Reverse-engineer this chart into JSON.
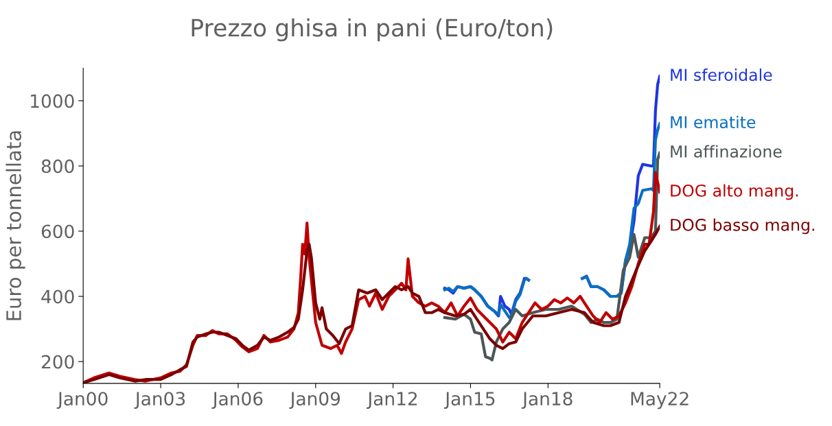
{
  "chart_data": {
    "type": "line",
    "title": "Prezzo ghisa in pani (Euro/ton)",
    "ylabel": "Euro per tonnellata",
    "xlim": [
      "2000-01",
      "2022-05"
    ],
    "xticks": [
      {
        "value": "2000-01",
        "label": "Jan00"
      },
      {
        "value": "2003-01",
        "label": "Jan03"
      },
      {
        "value": "2006-01",
        "label": "Jan06"
      },
      {
        "value": "2009-01",
        "label": "Jan09"
      },
      {
        "value": "2012-01",
        "label": "Jan12"
      },
      {
        "value": "2015-01",
        "label": "Jan15"
      },
      {
        "value": "2018-01",
        "label": "Jan18"
      },
      {
        "value": "2022-05",
        "label": "May22"
      }
    ],
    "ylim": [
      133,
      1100
    ],
    "yticks": [
      200,
      400,
      600,
      800,
      1000
    ],
    "grid": false,
    "legend": false,
    "marker": "none",
    "line_style": "solid",
    "series": [
      {
        "name": "MI sferoidale",
        "color": "#1f35e0",
        "x": [
          "2014-01",
          "2014-03",
          "2014-05",
          "2014-07",
          "2014-10",
          "2015-01",
          "2015-03",
          "2015-06",
          "2015-09",
          "2015-12",
          "2016-02",
          "2016-03",
          "2016-05",
          "2016-07",
          "2016-08",
          "2016-10",
          "2016-12",
          "2017-02",
          "2017-03",
          "2017-04",
          "2018-06",
          "2019-05",
          "2019-07",
          "2019-09",
          "2019-12",
          "2020-03",
          "2020-06",
          "2020-09",
          "2020-11",
          "2021-01",
          "2021-03",
          "2021-05",
          "2021-07",
          "2021-09",
          "2022-01",
          "2022-02",
          "2022-03",
          "2022-04",
          "2022-05"
        ],
        "values": [
          425,
          420,
          410,
          430,
          425,
          430,
          420,
          400,
          370,
          355,
          340,
          400,
          370,
          360,
          345,
          390,
          410,
          455,
          455,
          450,
          null,
          455,
          462,
          430,
          430,
          420,
          400,
          400,
          410,
          510,
          550,
          630,
          770,
          805,
          800,
          800,
          970,
          1050,
          1075
        ]
      },
      {
        "name": "MI ematite",
        "color": "#0a6fc2",
        "x": [
          "2014-01",
          "2014-03",
          "2014-05",
          "2014-07",
          "2014-10",
          "2015-01",
          "2015-03",
          "2015-06",
          "2015-09",
          "2015-12",
          "2016-02",
          "2016-03",
          "2016-05",
          "2016-07",
          "2016-08",
          "2016-10",
          "2016-12",
          "2017-02",
          "2017-03",
          "2017-04",
          "2018-06",
          "2019-05",
          "2019-07",
          "2019-09",
          "2019-12",
          "2020-03",
          "2020-06",
          "2020-09",
          "2020-11",
          "2021-01",
          "2021-03",
          "2021-05",
          "2021-07",
          "2021-09",
          "2022-01",
          "2022-02",
          "2022-03",
          "2022-04",
          "2022-05"
        ],
        "values": [
          420,
          425,
          415,
          430,
          425,
          430,
          420,
          400,
          370,
          355,
          345,
          375,
          355,
          335,
          340,
          385,
          405,
          450,
          455,
          450,
          null,
          455,
          460,
          430,
          430,
          420,
          400,
          400,
          410,
          510,
          560,
          670,
          685,
          725,
          730,
          725,
          880,
          910,
          930
        ]
      },
      {
        "name": "MI affinazione",
        "color": "#4d5656",
        "x": [
          "2014-01",
          "2014-06",
          "2014-10",
          "2015-01",
          "2015-03",
          "2015-06",
          "2015-08",
          "2015-10",
          "2015-11",
          "2016-01",
          "2016-04",
          "2016-07",
          "2016-10",
          "2017-01",
          "2017-06",
          "2017-12",
          "2018-06",
          "2018-12",
          "2019-06",
          "2019-09",
          "2019-12",
          "2020-03",
          "2020-06",
          "2020-09",
          "2020-12",
          "2021-03",
          "2021-05",
          "2021-07",
          "2021-10",
          "2022-01",
          "2022-03",
          "2022-04",
          "2022-05"
        ],
        "values": [
          335,
          330,
          345,
          330,
          290,
          285,
          215,
          210,
          205,
          260,
          300,
          320,
          360,
          340,
          350,
          360,
          360,
          370,
          345,
          320,
          330,
          320,
          320,
          330,
          480,
          520,
          590,
          520,
          580,
          580,
          600,
          820,
          840
        ]
      },
      {
        "name": "DOG alto mang.",
        "color": "#c00000",
        "x": [
          "2000-01",
          "2000-06",
          "2001-01",
          "2001-06",
          "2002-01",
          "2002-06",
          "2003-01",
          "2003-06",
          "2003-10",
          "2004-01",
          "2004-04",
          "2004-06",
          "2004-10",
          "2005-01",
          "2005-04",
          "2005-08",
          "2005-12",
          "2006-03",
          "2006-06",
          "2006-10",
          "2007-01",
          "2007-04",
          "2007-08",
          "2007-12",
          "2008-03",
          "2008-05",
          "2008-06",
          "2008-07",
          "2008-08",
          "2008-09",
          "2008-10",
          "2009-01",
          "2009-04",
          "2009-08",
          "2009-11",
          "2010-01",
          "2010-03",
          "2010-06",
          "2010-09",
          "2010-12",
          "2011-02",
          "2011-05",
          "2011-08",
          "2011-11",
          "2012-02",
          "2012-05",
          "2012-07",
          "2012-08",
          "2012-10",
          "2013-01",
          "2013-04",
          "2013-07",
          "2013-10",
          "2014-01",
          "2014-04",
          "2014-07",
          "2014-10",
          "2015-01",
          "2015-04",
          "2015-07",
          "2015-10",
          "2016-01",
          "2016-04",
          "2016-07",
          "2016-10",
          "2017-01",
          "2017-04",
          "2017-07",
          "2017-10",
          "2018-01",
          "2018-04",
          "2018-07",
          "2018-10",
          "2019-01",
          "2019-04",
          "2019-07",
          "2019-10",
          "2020-01",
          "2020-04",
          "2020-07",
          "2020-10",
          "2021-01",
          "2021-04",
          "2021-07",
          "2021-10",
          "2021-12",
          "2022-02",
          "2022-03",
          "2022-05"
        ],
        "values": [
          135,
          150,
          165,
          155,
          145,
          140,
          150,
          165,
          170,
          190,
          250,
          280,
          280,
          295,
          285,
          285,
          265,
          245,
          230,
          240,
          280,
          260,
          265,
          275,
          300,
          350,
          450,
          560,
          530,
          625,
          520,
          320,
          250,
          240,
          250,
          225,
          260,
          300,
          390,
          400,
          370,
          410,
          360,
          400,
          420,
          440,
          420,
          515,
          400,
          380,
          370,
          380,
          370,
          350,
          380,
          340,
          370,
          395,
          360,
          340,
          320,
          300,
          260,
          290,
          270,
          320,
          350,
          380,
          360,
          370,
          390,
          380,
          395,
          380,
          400,
          370,
          340,
          320,
          350,
          330,
          340,
          380,
          430,
          500,
          560,
          560,
          660,
          780,
          720
        ]
      },
      {
        "name": "DOG basso mang.",
        "color": "#7b0000",
        "x": [
          "2000-01",
          "2000-06",
          "2001-01",
          "2001-06",
          "2002-01",
          "2002-06",
          "2003-01",
          "2003-06",
          "2003-10",
          "2004-01",
          "2004-04",
          "2004-06",
          "2004-10",
          "2005-01",
          "2005-04",
          "2005-08",
          "2005-12",
          "2006-03",
          "2006-06",
          "2006-10",
          "2007-01",
          "2007-04",
          "2007-08",
          "2007-12",
          "2008-03",
          "2008-05",
          "2008-07",
          "2008-09",
          "2008-10",
          "2008-11",
          "2009-01",
          "2009-03",
          "2009-04",
          "2009-06",
          "2009-09",
          "2009-12",
          "2010-03",
          "2010-06",
          "2010-09",
          "2011-01",
          "2011-05",
          "2011-08",
          "2011-11",
          "2012-02",
          "2012-05",
          "2012-08",
          "2012-10",
          "2013-01",
          "2013-04",
          "2013-07",
          "2013-10",
          "2014-01",
          "2014-06",
          "2014-10",
          "2015-01",
          "2015-06",
          "2015-10",
          "2016-01",
          "2016-04",
          "2016-07",
          "2016-10",
          "2017-01",
          "2017-06",
          "2017-12",
          "2018-06",
          "2018-12",
          "2019-06",
          "2019-10",
          "2020-03",
          "2020-06",
          "2020-10",
          "2021-01",
          "2021-06",
          "2021-10",
          "2022-01",
          "2022-03",
          "2022-05"
        ],
        "values": [
          135,
          145,
          160,
          150,
          140,
          145,
          145,
          160,
          175,
          185,
          260,
          275,
          285,
          290,
          290,
          280,
          270,
          250,
          235,
          250,
          275,
          265,
          275,
          290,
          305,
          330,
          420,
          540,
          560,
          520,
          380,
          330,
          365,
          300,
          280,
          255,
          300,
          310,
          420,
          410,
          420,
          390,
          410,
          430,
          420,
          430,
          410,
          400,
          350,
          350,
          360,
          350,
          340,
          345,
          360,
          310,
          270,
          250,
          240,
          255,
          260,
          300,
          340,
          340,
          350,
          360,
          350,
          320,
          310,
          310,
          320,
          400,
          480,
          540,
          570,
          590,
          615
        ]
      }
    ]
  }
}
